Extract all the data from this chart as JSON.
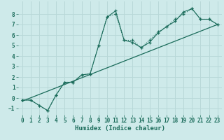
{
  "xlabel": "Humidex (Indice chaleur)",
  "ylabel": "",
  "background_color": "#ceeaea",
  "grid_color": "#b8d8d8",
  "line_color": "#1a6b5a",
  "xlim": [
    -0.5,
    23.5
  ],
  "ylim": [
    -1.6,
    9.2
  ],
  "yticks": [
    -1,
    0,
    1,
    2,
    3,
    4,
    5,
    6,
    7,
    8
  ],
  "xticks": [
    0,
    1,
    2,
    3,
    4,
    5,
    6,
    7,
    8,
    9,
    10,
    11,
    12,
    13,
    14,
    15,
    16,
    17,
    18,
    19,
    20,
    21,
    22,
    23
  ],
  "series1_x": [
    0,
    1,
    2,
    3,
    4,
    5,
    6,
    7,
    8,
    9,
    10,
    11,
    12,
    13,
    14,
    15,
    16,
    17,
    18,
    19,
    20,
    21,
    22,
    23
  ],
  "series1_y": [
    -0.2,
    -0.2,
    -0.7,
    -1.2,
    0.3,
    1.5,
    1.5,
    2.2,
    2.3,
    5.0,
    7.7,
    8.3,
    5.5,
    5.3,
    4.8,
    5.3,
    6.2,
    6.8,
    7.3,
    8.2,
    8.5,
    7.5,
    7.5,
    7.0
  ],
  "series2_x": [
    0,
    1,
    2,
    3,
    4,
    5,
    6,
    7,
    8,
    9,
    10,
    11,
    12,
    13,
    14,
    15,
    16,
    17,
    18,
    19,
    20,
    21,
    22,
    23
  ],
  "series2_y": [
    -0.2,
    -0.2,
    -0.7,
    -1.2,
    0.3,
    1.5,
    1.5,
    2.2,
    2.3,
    5.0,
    7.7,
    8.0,
    5.5,
    5.5,
    4.8,
    5.5,
    6.3,
    6.8,
    7.5,
    8.0,
    8.5,
    7.5,
    7.5,
    7.0
  ],
  "series3_x": [
    0,
    23
  ],
  "series3_y": [
    -0.3,
    7.0
  ]
}
